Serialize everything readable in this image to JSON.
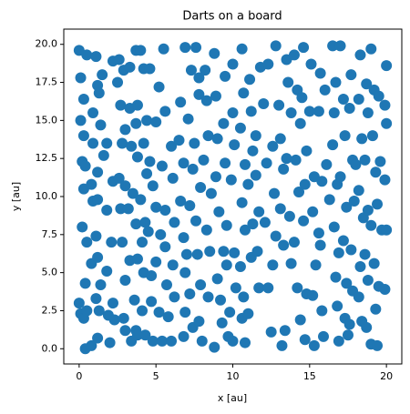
{
  "chart_data": {
    "type": "scatter",
    "title": "Darts on a board",
    "x_label": "x [au]",
    "y_label": "y [au]",
    "color": "#1f77b4",
    "xlim": [
      -1,
      21
    ],
    "ylim": [
      -1,
      21
    ],
    "xticks": [
      0,
      5,
      10,
      15,
      20
    ],
    "yticks": [
      {
        "value": 0,
        "label": "0.0"
      },
      2.5,
      {
        "value": 5,
        "label": "5.0"
      },
      7.5,
      {
        "value": 10,
        "label": "10.0"
      },
      12.5,
      {
        "value": 15,
        "label": "15.0"
      },
      17.5,
      {
        "value": 20,
        "label": "20.0"
      }
    ],
    "grid": false,
    "x": [
      0,
      0.1,
      0.3,
      0.1,
      0.3,
      0.5,
      0.2,
      0.4,
      0.3,
      0.2,
      0.5,
      0.4,
      0,
      0.1,
      0.3,
      0.5,
      0.4,
      0.8,
      0.8,
      0.9,
      0.8,
      0.9,
      0.9,
      1.1,
      1.2,
      1.3,
      1.5,
      1.4,
      1.2,
      1.2,
      1.1,
      1.2,
      1.4,
      1.1,
      1.3,
      1.2,
      1.6,
      1.8,
      1.8,
      1.9,
      2.0,
      1.8,
      2.2,
      2.1,
      2.2,
      2.3,
      2.2,
      2.6,
      2.5,
      2.9,
      3.3,
      2.7,
      3.0,
      2.8,
      2.6,
      3.0,
      2.7,
      3.2,
      2.8,
      3.3,
      3.0,
      2.9,
      3.0,
      3.4,
      3.4,
      3.3,
      3.7,
      3.8,
      3.7,
      3.8,
      3.5,
      3.7,
      3.8,
      3.6,
      3.7,
      3.8,
      4.0,
      4.2,
      4.4,
      4.2,
      4.4,
      4.0,
      4.3,
      4.1,
      4.2,
      4.1,
      4.3,
      4.6,
      4.6,
      4.8,
      4.5,
      4.7,
      4.7,
      4.8,
      5.0,
      5.2,
      5.0,
      5.3,
      5.0,
      5.2,
      5.4,
      5.5,
      5.6,
      5.4,
      5.6,
      5.6,
      5.7,
      5.8,
      6.0,
      6.1,
      6.2,
      6.1,
      6.2,
      6.0,
      6.6,
      6.5,
      6.8,
      6.6,
      6.8,
      6.9,
      6.9,
      6.8,
      6.9,
      7.3,
      7.1,
      7.4,
      7.2,
      7.0,
      7.2,
      7.4,
      7.6,
      7.8,
      7.8,
      7.5,
      7.9,
      7.6,
      7.7,
      7.9,
      7.8,
      8.0,
      8.2,
      8.3,
      8.4,
      8.1,
      8.6,
      8.3,
      8.5,
      8.4,
      8.8,
      8.8,
      8.9,
      9.0,
      8.9,
      9.1,
      9.0,
      9.2,
      9.3,
      9.5,
      9.4,
      9.5,
      9.6,
      9.4,
      9.6,
      9.8,
      9.7,
      10.0,
      10.0,
      10.1,
      9.9,
      10.1,
      10.2,
      10.0,
      10.6,
      10.7,
      10.5,
      10.8,
      10.6,
      10.8,
      10.5,
      10.7,
      10.6,
      10.8,
      11.1,
      11.2,
      11.3,
      11.0,
      11.3,
      11.2,
      11.0,
      11.5,
      11.5,
      11.7,
      11.6,
      11.7,
      11.8,
      12.0,
      12.2,
      12.1,
      12.3,
      12.5,
      12.3,
      12.8,
      12.6,
      12.7,
      12.8,
      12.6,
      13.0,
      13.1,
      13.3,
      13.1,
      13.3,
      13.4,
      13.2,
      13.5,
      13.6,
      13.8,
      13.5,
      13.7,
      13.8,
      14.0,
      14.2,
      14.4,
      14.1,
      14.3,
      14.0,
      14.2,
      14.4,
      14.6,
      14.5,
      14.8,
      14.7,
      14.6,
      14.8,
      14.7,
      15.1,
      15.0,
      15.3,
      15.2,
      15.4,
      15.2,
      15.3,
      15.7,
      15.6,
      15.8,
      15.6,
      15.7,
      15.8,
      15.9,
      16.0,
      16.1,
      16.3,
      16.5,
      16.7,
      16.6,
      16.5,
      16.8,
      16.6,
      16.9,
      16.7,
      16.8,
      16.9,
      17.0,
      17.2,
      17.3,
      17.0,
      17.4,
      17.2,
      17.4,
      17.3,
      17.5,
      17.7,
      17.6,
      17.8,
      17.9,
      17.7,
      17.8,
      17.6,
      18.0,
      18.3,
      18.2,
      18.4,
      18.2,
      18.5,
      18.3,
      18.2,
      18.4,
      18.7,
      18.8,
      18.6,
      18.8,
      18.6,
      18.8,
      18.7,
      19.0,
      19.2,
      19.1,
      19.3,
      19.0,
      19.2,
      19.3,
      19.0,
      19.5,
      19.6,
      19.4,
      19.7,
      19.5,
      19.4,
      20.0,
      19.9,
      20.0,
      19.9,
      20.0,
      19.9
    ],
    "y": [
      19.6,
      17.8,
      16.4,
      15.0,
      14.0,
      19.3,
      12.3,
      12.0,
      10.5,
      8.0,
      7.0,
      4.3,
      3.0,
      2.3,
      2.0,
      2.5,
      0.0,
      0.2,
      5.6,
      9.7,
      10.8,
      13.5,
      15.5,
      19.2,
      17.3,
      16.8,
      18.0,
      14.7,
      11.6,
      9.8,
      7.4,
      6.0,
      4.2,
      3.3,
      2.5,
      0.7,
      12.7,
      9.1,
      13.5,
      2.2,
      0.4,
      5.1,
      18.9,
      7.0,
      3.0,
      1.9,
      11.0,
      19.0,
      17.5,
      18.3,
      18.5,
      16.0,
      14.4,
      13.5,
      11.2,
      10.7,
      9.2,
      9.2,
      7.0,
      5.8,
      4.5,
      2.0,
      1.2,
      0.5,
      13.3,
      15.8,
      19.6,
      16.0,
      14.8,
      12.6,
      10.2,
      8.2,
      5.9,
      3.2,
      1.2,
      0.9,
      19.6,
      18.4,
      15.0,
      13.5,
      11.5,
      9.8,
      8.3,
      7.0,
      5.0,
      2.5,
      0.9,
      18.4,
      12.3,
      10.7,
      7.7,
      4.8,
      3.1,
      0.5,
      14.9,
      17.2,
      9.3,
      7.5,
      5.7,
      2.4,
      0.5,
      19.7,
      15.6,
      12.0,
      9.1,
      6.7,
      4.2,
      2.1,
      13.3,
      11.2,
      8.3,
      5.5,
      3.4,
      0.5,
      16.2,
      13.7,
      12.2,
      9.7,
      7.3,
      5.0,
      2.4,
      0.8,
      19.8,
      18.3,
      15.1,
      11.8,
      9.4,
      6.2,
      3.6,
      1.4,
      19.8,
      17.8,
      16.7,
      13.5,
      10.6,
      8.4,
      6.2,
      4.2,
      1.8,
      0.5,
      18.3,
      16.3,
      14.0,
      12.4,
      10.2,
      7.8,
      6.4,
      3.4,
      0.1,
      19.4,
      16.6,
      13.8,
      11.3,
      9.0,
      4.6,
      3.2,
      1.7,
      17.9,
      14.8,
      12.2,
      8.1,
      6.4,
      5.5,
      2.4,
      0.8,
      18.7,
      15.5,
      13.4,
      11.1,
      6.3,
      4.0,
      0.5,
      19.7,
      16.8,
      14.5,
      12.1,
      9.6,
      7.8,
      5.4,
      3.4,
      2.0,
      0.4,
      17.7,
      15.6,
      13.0,
      10.8,
      8.2,
      6.0,
      2.3,
      14.0,
      11.4,
      9.0,
      6.4,
      4.0,
      18.5,
      16.1,
      12.2,
      8.3,
      4.0,
      1.1,
      18.7,
      19.9,
      13.3,
      10.2,
      7.4,
      5.5,
      16.0,
      13.8,
      11.8,
      9.2,
      6.8,
      1.2,
      0.2,
      19.0,
      17.5,
      15.5,
      12.5,
      8.7,
      5.6,
      19.3,
      17.0,
      14.8,
      12.4,
      10.3,
      7.0,
      4.0,
      1.9,
      19.8,
      16.5,
      13.0,
      10.8,
      8.4,
      3.6,
      0.6,
      18.7,
      15.6,
      11.3,
      9.0,
      5.5,
      3.5,
      0.2,
      18.1,
      15.6,
      11.0,
      7.6,
      6.8,
      2.5,
      0.8,
      17.0,
      12.1,
      9.8,
      19.9,
      17.5,
      15.5,
      13.4,
      10.8,
      8.0,
      6.3,
      4.7,
      2.8,
      0.5,
      19.9,
      16.4,
      14.0,
      11.3,
      9.3,
      7.1,
      4.3,
      2.0,
      0.9,
      18.0,
      15.8,
      12.4,
      9.7,
      6.5,
      3.8,
      1.6,
      12.1,
      19.3,
      16.4,
      13.8,
      10.4,
      8.6,
      5.4,
      3.4,
      1.8,
      17.4,
      15.5,
      12.4,
      9.1,
      6.2,
      4.5,
      1.4,
      19.7,
      17.0,
      14.0,
      11.6,
      8.1,
      5.6,
      2.6,
      0.3,
      16.6,
      12.3,
      9.5,
      7.8,
      4.1,
      0.2,
      18.6,
      16.0,
      14.8,
      11.1,
      7.8,
      3.9
    ]
  }
}
